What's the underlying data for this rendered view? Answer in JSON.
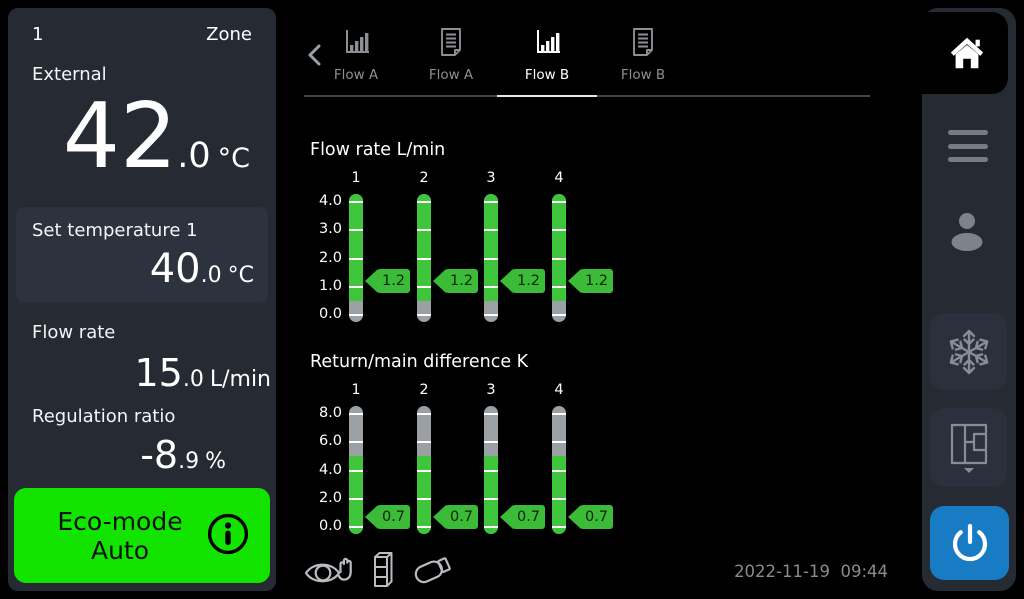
{
  "zone_panel": {
    "zone_number": "1",
    "zone_label": "Zone",
    "external_label": "External",
    "external_value": "42",
    "external_decimal": ".0",
    "external_unit": "°C",
    "set_temp_label": "Set temperature 1",
    "set_temp_value": "40",
    "set_temp_decimal": ".0",
    "set_temp_unit": "°C",
    "flow_label": "Flow rate",
    "flow_value": "15",
    "flow_decimal": ".0",
    "flow_unit": "L/min",
    "regulation_label": "Regulation ratio",
    "regulation_value": "-8",
    "regulation_decimal": ".9",
    "regulation_unit": "%",
    "eco_button_label": "Eco-mode Auto"
  },
  "tab_bar": {
    "tabs": [
      {
        "label": "Flow A",
        "icon": "bar-chart-icon",
        "active": false
      },
      {
        "label": "Flow A",
        "icon": "document-icon",
        "active": false
      },
      {
        "label": "Flow B",
        "icon": "bar-chart-icon",
        "active": true
      },
      {
        "label": "Flow B",
        "icon": "document-icon",
        "active": false
      }
    ]
  },
  "chart_data": [
    {
      "type": "bar",
      "style": "vertical-gauge",
      "title": "Flow rate L/min",
      "categories": [
        "1",
        "2",
        "3",
        "4"
      ],
      "values": [
        1.2,
        1.2,
        1.2,
        1.2
      ],
      "pointer_labels": [
        "1.2",
        "1.2",
        "1.2",
        "1.2"
      ],
      "ylim": [
        0.0,
        4.0
      ],
      "yticks": [
        "4.0",
        "3.0",
        "2.0",
        "1.0",
        "0.0"
      ],
      "green_zone": [
        0.5,
        4.0
      ],
      "gray_zone": [
        0.0,
        0.5
      ]
    },
    {
      "type": "bar",
      "style": "vertical-gauge",
      "title": "Return/main difference K",
      "categories": [
        "1",
        "2",
        "3",
        "4"
      ],
      "values": [
        0.7,
        0.7,
        0.7,
        0.7
      ],
      "pointer_labels": [
        "0.7",
        "0.7",
        "0.7",
        "0.7"
      ],
      "ylim": [
        0.0,
        8.0
      ],
      "yticks": [
        "8.0",
        "6.0",
        "4.0",
        "2.0",
        "0.0"
      ],
      "green_zone": [
        0.0,
        5.0
      ],
      "gray_zone": [
        5.0,
        8.0
      ]
    }
  ],
  "status_bar": {
    "datetime": "2022-11-19  09:44",
    "icons": [
      "supervision-eye-hand-icon",
      "module-icon",
      "usb-icon"
    ]
  },
  "colors": {
    "gauge_green": "#3ec53b",
    "pointer_green": "#3bbb37",
    "gauge_gray": "#9aa0a3",
    "eco_green": "#12e400",
    "power_blue": "#187cc4",
    "panel_bg": "#252a33",
    "card_bg": "#2d333e"
  }
}
